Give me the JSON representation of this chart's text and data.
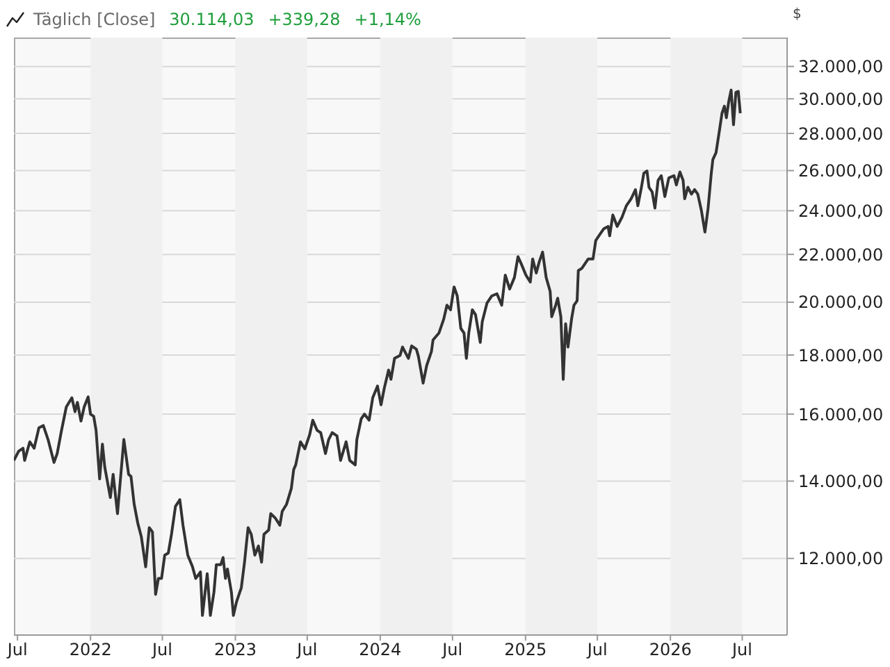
{
  "chart_data": {
    "type": "line",
    "title": "Täglich [Close]",
    "annotations": [
      "30.114,03",
      "+339,28",
      "+1,14%"
    ],
    "ylabel": "$",
    "log": "y",
    "grid": "y",
    "color": "#333333",
    "xlim": [
      "2021-06-22",
      "2026-10-22"
    ],
    "xticks": [
      {
        "value": "2021-07-01",
        "label": "Jul"
      },
      {
        "value": "2022-01-01",
        "label": "2022"
      },
      {
        "value": "2022-07-01",
        "label": "Jul"
      },
      {
        "value": "2023-01-01",
        "label": "2023"
      },
      {
        "value": "2023-07-01",
        "label": "Jul"
      },
      {
        "value": "2024-01-01",
        "label": "2024"
      },
      {
        "value": "2024-07-01",
        "label": "Jul"
      },
      {
        "value": "2025-01-01",
        "label": "2025"
      },
      {
        "value": "2025-07-01",
        "label": "Jul"
      },
      {
        "value": "2026-01-01",
        "label": "2026"
      },
      {
        "value": "2026-07-01",
        "label": "Jul"
      }
    ],
    "ylim": [
      10300,
      33900
    ],
    "yticks": [
      {
        "value": 12000,
        "label": "12.000,00"
      },
      {
        "value": 14000,
        "label": "14.000,00"
      },
      {
        "value": 16000,
        "label": "16.000,00"
      },
      {
        "value": 18000,
        "label": "18.000,00"
      },
      {
        "value": 20000,
        "label": "20.000,00"
      },
      {
        "value": 22000,
        "label": "22.000,00"
      },
      {
        "value": 24000,
        "label": "24.000,00"
      },
      {
        "value": 26000,
        "label": "26.000,00"
      },
      {
        "value": 28000,
        "label": "28.000,00"
      },
      {
        "value": 30000,
        "label": "30.000,00"
      },
      {
        "value": 32000,
        "label": "32.000,00"
      }
    ],
    "bands": [
      {
        "axis": "x",
        "from": "2022-01-01",
        "to": "2022-07-01",
        "color": "#f0f0f0"
      },
      {
        "axis": "x",
        "from": "2023-01-01",
        "to": "2023-07-01",
        "color": "#f0f0f0"
      },
      {
        "axis": "x",
        "from": "2024-01-01",
        "to": "2024-07-01",
        "color": "#f0f0f0"
      },
      {
        "axis": "x",
        "from": "2025-01-01",
        "to": "2025-07-01",
        "color": "#f0f0f0"
      },
      {
        "axis": "x",
        "from": "2026-01-01",
        "to": "2026-07-01",
        "color": "#f0f0f0"
      }
    ],
    "x": [
      "2021-06-22",
      "2021-07-04",
      "2021-07-15",
      "2021-07-19",
      "2021-08-01",
      "2021-08-12",
      "2021-08-24",
      "2021-09-04",
      "2021-09-16",
      "2021-10-01",
      "2021-10-09",
      "2021-10-20",
      "2021-11-01",
      "2021-11-15",
      "2021-11-23",
      "2021-11-29",
      "2021-12-08",
      "2021-12-16",
      "2021-12-26",
      "2022-01-01",
      "2022-01-09",
      "2022-01-15",
      "2022-01-24",
      "2022-01-31",
      "2022-02-06",
      "2022-02-20",
      "2022-02-27",
      "2022-03-10",
      "2022-03-17",
      "2022-03-26",
      "2022-04-07",
      "2022-04-13",
      "2022-04-21",
      "2022-04-30",
      "2022-05-09",
      "2022-05-20",
      "2022-05-29",
      "2022-06-06",
      "2022-06-14",
      "2022-06-21",
      "2022-06-29",
      "2022-07-07",
      "2022-07-16",
      "2022-07-24",
      "2022-08-03",
      "2022-08-14",
      "2022-08-22",
      "2022-09-03",
      "2022-09-15",
      "2022-09-23",
      "2022-10-05",
      "2022-10-10",
      "2022-10-22",
      "2022-10-30",
      "2022-11-08",
      "2022-11-14",
      "2022-11-25",
      "2022-12-01",
      "2022-12-07",
      "2022-12-12",
      "2022-12-22",
      "2022-12-27",
      "2023-01-04",
      "2023-01-16",
      "2023-01-24",
      "2023-02-02",
      "2023-02-10",
      "2023-02-19",
      "2023-02-28",
      "2023-03-08",
      "2023-03-14",
      "2023-03-26",
      "2023-03-31",
      "2023-04-12",
      "2023-04-23",
      "2023-04-29",
      "2023-05-10",
      "2023-05-22",
      "2023-05-28",
      "2023-06-02",
      "2023-06-14",
      "2023-06-25",
      "2023-07-07",
      "2023-07-15",
      "2023-07-26",
      "2023-08-04",
      "2023-08-16",
      "2023-08-24",
      "2023-09-02",
      "2023-09-14",
      "2023-09-23",
      "2023-10-07",
      "2023-10-16",
      "2023-10-30",
      "2023-11-03",
      "2023-11-14",
      "2023-11-22",
      "2023-12-04",
      "2023-12-13",
      "2023-12-25",
      "2024-01-03",
      "2024-01-11",
      "2024-01-22",
      "2024-01-28",
      "2024-02-06",
      "2024-02-20",
      "2024-02-26",
      "2024-03-12",
      "2024-03-20",
      "2024-04-01",
      "2024-04-06",
      "2024-04-18",
      "2024-04-27",
      "2024-05-09",
      "2024-05-13",
      "2024-05-28",
      "2024-06-09",
      "2024-06-17",
      "2024-06-26",
      "2024-07-05",
      "2024-07-13",
      "2024-07-22",
      "2024-07-30",
      "2024-08-05",
      "2024-08-11",
      "2024-08-20",
      "2024-08-28",
      "2024-09-09",
      "2024-09-14",
      "2024-09-26",
      "2024-10-08",
      "2024-10-21",
      "2024-11-02",
      "2024-11-11",
      "2024-11-22",
      "2024-12-04",
      "2024-12-13",
      "2024-12-21",
      "2025-01-02",
      "2025-01-13",
      "2025-01-19",
      "2025-01-28",
      "2025-02-05",
      "2025-02-13",
      "2025-02-22",
      "2025-03-04",
      "2025-03-08",
      "2025-03-18",
      "2025-03-23",
      "2025-03-31",
      "2025-04-06",
      "2025-04-12",
      "2025-04-18",
      "2025-04-27",
      "2025-05-03",
      "2025-05-11",
      "2025-05-14",
      "2025-05-23",
      "2025-05-31",
      "2025-06-08",
      "2025-06-20",
      "2025-06-27",
      "2025-07-09",
      "2025-07-17",
      "2025-07-28",
      "2025-08-01",
      "2025-08-09",
      "2025-08-20",
      "2025-09-01",
      "2025-09-12",
      "2025-09-24",
      "2025-10-05",
      "2025-10-11",
      "2025-10-20",
      "2025-10-26",
      "2025-11-03",
      "2025-11-08",
      "2025-11-16",
      "2025-11-23",
      "2025-12-01",
      "2025-12-09",
      "2025-12-18",
      "2025-12-28",
      "2026-01-10",
      "2026-01-16",
      "2026-01-25",
      "2026-02-02",
      "2026-02-06",
      "2026-02-14",
      "2026-02-23",
      "2026-03-03",
      "2026-03-11",
      "2026-03-20",
      "2026-03-29",
      "2026-04-06",
      "2026-04-14",
      "2026-04-18",
      "2026-04-26",
      "2026-05-05",
      "2026-05-11",
      "2026-05-17",
      "2026-05-22",
      "2026-05-28",
      "2026-06-03",
      "2026-06-09",
      "2026-06-15",
      "2026-06-21",
      "2026-06-26"
    ],
    "values": [
      14590,
      14860,
      14950,
      14590,
      15140,
      14950,
      15570,
      15640,
      15210,
      14530,
      14790,
      15490,
      16230,
      16530,
      16080,
      16380,
      15780,
      16230,
      16560,
      16000,
      15930,
      15490,
      14060,
      15070,
      14390,
      13550,
      14190,
      13120,
      14000,
      15210,
      14190,
      14130,
      13370,
      12880,
      12530,
      11800,
      12760,
      12650,
      11170,
      11530,
      11530,
      12080,
      12130,
      12590,
      13310,
      13490,
      12820,
      12080,
      11800,
      11530,
      11680,
      10710,
      11640,
      10710,
      11220,
      11850,
      11850,
      12020,
      11530,
      11750,
      11220,
      10710,
      11010,
      11320,
      11910,
      12760,
      12590,
      12080,
      12300,
      11910,
      12590,
      12700,
      13120,
      13000,
      12820,
      13180,
      13370,
      13800,
      14330,
      14460,
      15140,
      14930,
      15350,
      15810,
      15490,
      15420,
      14790,
      15210,
      15420,
      15320,
      14590,
      15140,
      14590,
      14460,
      15210,
      15850,
      16000,
      15810,
      16530,
      16920,
      16300,
      16840,
      17470,
      17150,
      17880,
      17990,
      18290,
      17880,
      18330,
      18210,
      17960,
      17020,
      17630,
      18130,
      18550,
      18810,
      19340,
      19880,
      19700,
      20620,
      20250,
      18980,
      18810,
      17880,
      18810,
      19700,
      19510,
      18460,
      19240,
      19970,
      20250,
      20340,
      19880,
      21110,
      20530,
      21010,
      21900,
      21600,
      21110,
      20820,
      21800,
      21200,
      21700,
      22100,
      21010,
      20440,
      19430,
      19880,
      20160,
      19430,
      17150,
      19160,
      18290,
      19340,
      19880,
      20060,
      21300,
      21400,
      21600,
      21800,
      21800,
      22620,
      22940,
      23150,
      23260,
      22830,
      23800,
      23260,
      23690,
      24240,
      24580,
      25030,
      24240,
      25150,
      25860,
      25980,
      25150,
      24920,
      24130,
      25500,
      25740,
      24690,
      25620,
      25740,
      25270,
      25930,
      25500,
      24580,
      25150,
      24810,
      25030,
      24810,
      24020,
      23000,
      24130,
      25860,
      26580,
      26950,
      28230,
      29150,
      29560,
      28890,
      29840,
      30530,
      28490,
      30390,
      30450,
      29150
    ]
  }
}
